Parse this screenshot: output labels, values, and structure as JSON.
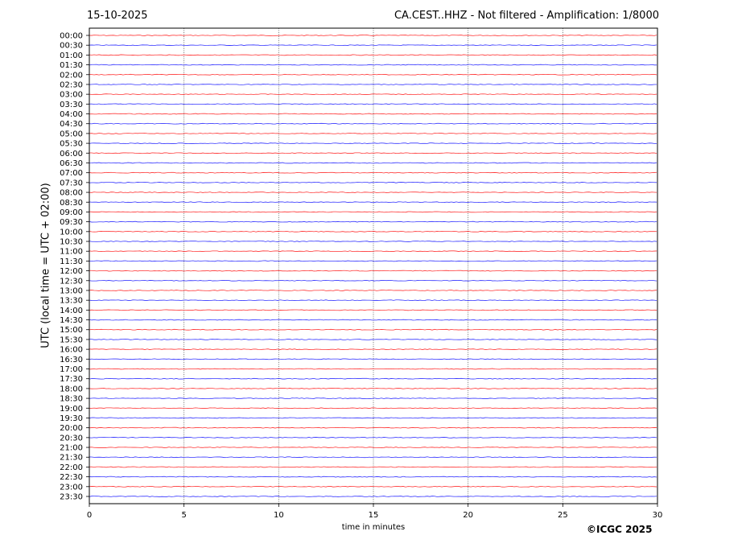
{
  "header": {
    "date": "15-10-2025",
    "title": "CA.CEST..HHZ - Not filtered - Amplification: 1/8000"
  },
  "footer": {
    "copyright": "©ICGC 2025"
  },
  "chart_data": {
    "type": "line",
    "subtype": "helicorder",
    "xlabel": "time in minutes",
    "ylabel": "UTC (local time = UTC + 02:00)",
    "xlim": [
      0,
      30
    ],
    "x_ticks": [
      "0",
      "5",
      "10",
      "15",
      "20",
      "25",
      "30"
    ],
    "grid": "vertical dotted at x ticks",
    "trace_colors": [
      "#ff0000",
      "#0000ff"
    ],
    "rows": [
      "00:00",
      "00:30",
      "01:00",
      "01:30",
      "02:00",
      "02:30",
      "03:00",
      "03:30",
      "04:00",
      "04:30",
      "05:00",
      "05:30",
      "06:00",
      "06:30",
      "07:00",
      "07:30",
      "08:00",
      "08:30",
      "09:00",
      "09:30",
      "10:00",
      "10:30",
      "11:00",
      "11:30",
      "12:00",
      "12:30",
      "13:00",
      "13:30",
      "14:00",
      "14:30",
      "15:00",
      "15:30",
      "16:00",
      "16:30",
      "17:00",
      "17:30",
      "18:00",
      "18:30",
      "19:00",
      "19:30",
      "20:00",
      "20:30",
      "21:00",
      "21:30",
      "22:00",
      "22:30",
      "23:00",
      "23:30"
    ],
    "note_signal": "all traces flat (low-amplitude noise only)"
  }
}
